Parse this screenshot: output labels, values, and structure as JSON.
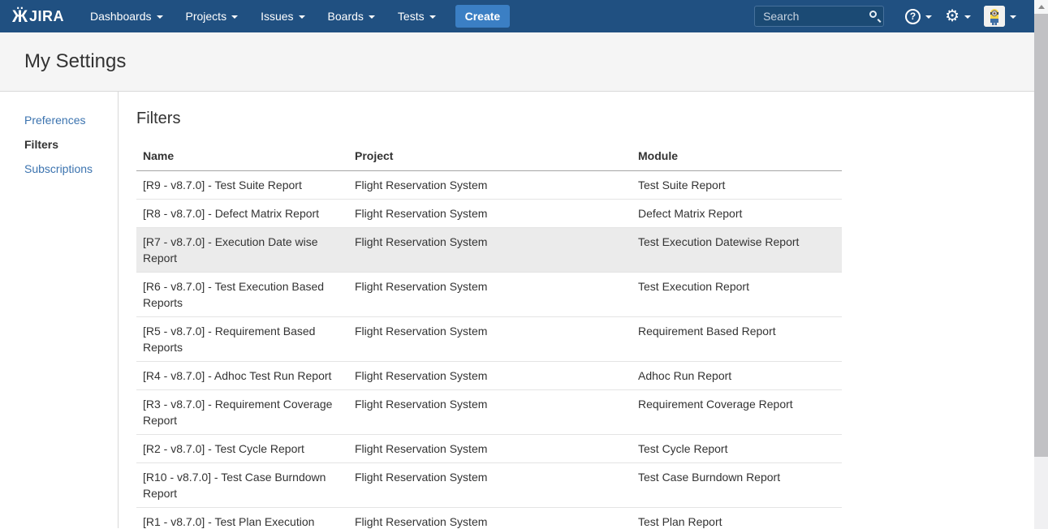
{
  "navbar": {
    "logo_text": "JIRA",
    "items": [
      {
        "label": "Dashboards"
      },
      {
        "label": "Projects"
      },
      {
        "label": "Issues"
      },
      {
        "label": "Boards"
      },
      {
        "label": "Tests"
      }
    ],
    "create_label": "Create",
    "search_placeholder": "Search",
    "icons": [
      "search-icon",
      "help-icon",
      "gear-icon",
      "user-avatar",
      "chevron-down-icon"
    ]
  },
  "page": {
    "title": "My Settings"
  },
  "sidebar": {
    "items": [
      {
        "label": "Preferences",
        "active": false
      },
      {
        "label": "Filters",
        "active": true
      },
      {
        "label": "Subscriptions",
        "active": false
      }
    ]
  },
  "content": {
    "heading": "Filters",
    "table": {
      "columns": [
        "Name",
        "Project",
        "Module"
      ],
      "highlighted_row_index": 2,
      "rows": [
        {
          "name": "[R9 - v8.7.0] - Test Suite Report",
          "project": "Flight Reservation System",
          "module": "Test Suite Report"
        },
        {
          "name": "[R8 - v8.7.0] - Defect Matrix Report",
          "project": "Flight Reservation System",
          "module": "Defect Matrix Report"
        },
        {
          "name": "[R7 - v8.7.0] - Execution Date wise Report",
          "project": "Flight Reservation System",
          "module": "Test Execution Datewise Report"
        },
        {
          "name": "[R6 - v8.7.0] - Test Execution Based Reports",
          "project": "Flight Reservation System",
          "module": "Test Execution Report"
        },
        {
          "name": "[R5 - v8.7.0] - Requirement Based Reports",
          "project": "Flight Reservation System",
          "module": "Requirement Based Report"
        },
        {
          "name": "[R4 - v8.7.0] - Adhoc Test Run Report",
          "project": "Flight Reservation System",
          "module": "Adhoc Run Report"
        },
        {
          "name": "[R3 - v8.7.0] - Requirement Coverage Report",
          "project": "Flight Reservation System",
          "module": "Requirement Coverage Report"
        },
        {
          "name": "[R2 - v8.7.0] - Test Cycle Report",
          "project": "Flight Reservation System",
          "module": "Test Cycle Report"
        },
        {
          "name": "[R10 - v8.7.0] - Test Case Burndown Report",
          "project": "Flight Reservation System",
          "module": "Test Case Burndown Report"
        },
        {
          "name": "[R1 - v8.7.0] - Test Plan Execution",
          "project": "Flight Reservation System",
          "module": "Test Plan Report"
        }
      ]
    }
  },
  "colors": {
    "navbar_bg": "#205081",
    "create_button": "#3b7fc4",
    "link": "#3b73af",
    "row_highlight": "#ebebeb",
    "header_band": "#f5f5f5"
  }
}
